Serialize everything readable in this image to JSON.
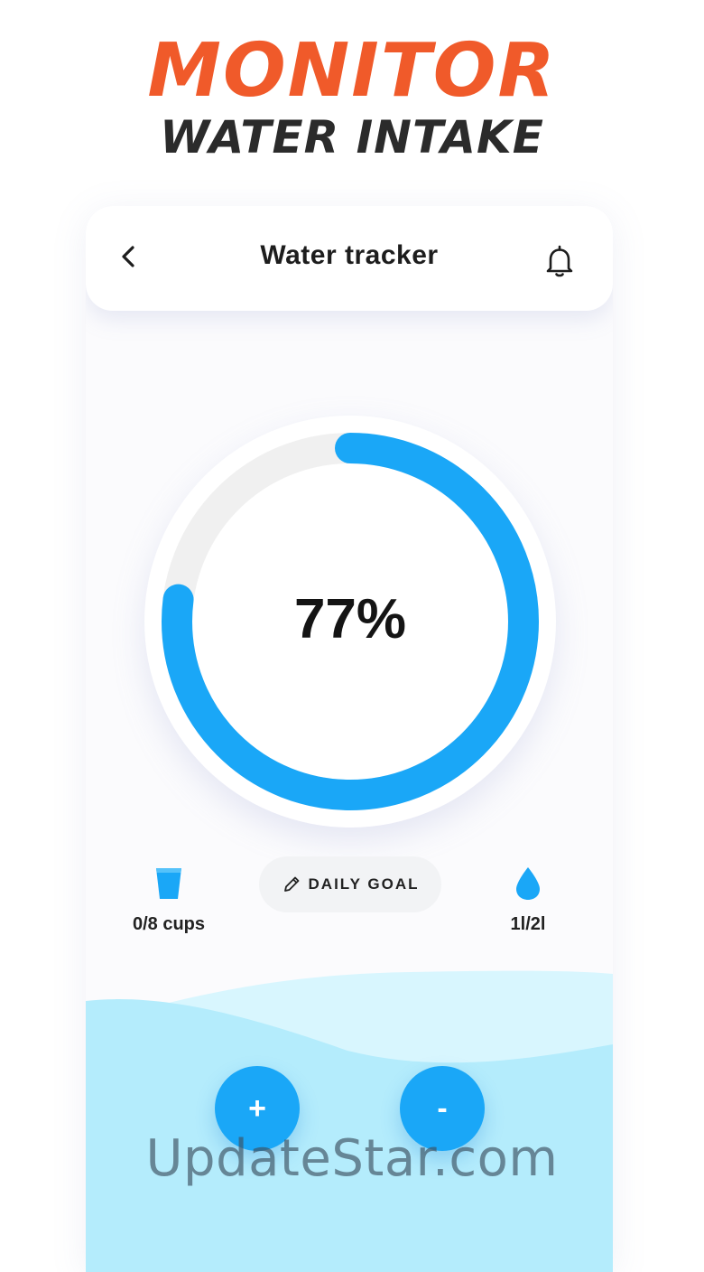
{
  "promo": {
    "headline": "MONITOR",
    "subheadline": "WATER INTAKE"
  },
  "appbar": {
    "title": "Water tracker",
    "back_icon": "chevron-left-icon",
    "bell_icon": "bell-icon"
  },
  "progress": {
    "percent_label": "77%",
    "fraction": 0.77,
    "track_color": "#f0f0f0",
    "fill_color": "#1aa7f7"
  },
  "stats": {
    "cups": {
      "icon": "cup-icon",
      "label": "0/8 cups"
    },
    "liters": {
      "icon": "water-drop-icon",
      "label": "1l/2l"
    }
  },
  "daily_goal": {
    "icon": "pencil-icon",
    "label": "DAILY GOAL"
  },
  "actions": {
    "add_label": "+",
    "remove_label": "-"
  },
  "watermark": "UpdateStar.com",
  "colors": {
    "accent_orange": "#f05a2a",
    "accent_blue": "#1aa7f7",
    "water_light": "#b4ecfc"
  }
}
